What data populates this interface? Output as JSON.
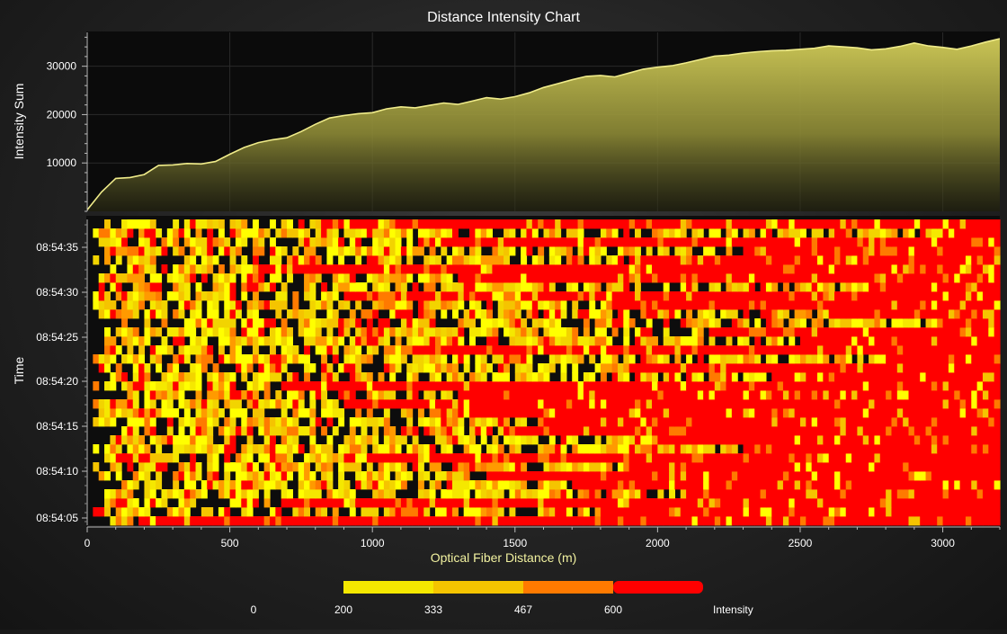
{
  "chart_data": [
    {
      "type": "area",
      "title": "Distance Intensity Chart",
      "xlabel": "Optical Fiber Distance (m)",
      "ylabel": "Intensity Sum",
      "xlim": [
        0,
        3200
      ],
      "ylim": [
        0,
        37000
      ],
      "x_ticks": [
        0,
        500,
        1000,
        1500,
        2000,
        2500,
        3000
      ],
      "y_ticks": [
        10000,
        20000,
        30000
      ],
      "x": [
        0,
        50,
        100,
        150,
        200,
        250,
        300,
        350,
        400,
        450,
        500,
        550,
        600,
        650,
        700,
        750,
        800,
        850,
        900,
        950,
        1000,
        1050,
        1100,
        1150,
        1200,
        1250,
        1300,
        1350,
        1400,
        1450,
        1500,
        1550,
        1600,
        1650,
        1700,
        1750,
        1800,
        1850,
        1900,
        1950,
        2000,
        2050,
        2100,
        2150,
        2200,
        2250,
        2300,
        2350,
        2400,
        2450,
        2500,
        2550,
        2600,
        2650,
        2700,
        2750,
        2800,
        2850,
        2900,
        2950,
        3000,
        3050,
        3100,
        3150,
        3200
      ],
      "values": [
        300,
        4000,
        6800,
        7000,
        7600,
        9500,
        9600,
        9900,
        9800,
        10300,
        11800,
        13200,
        14200,
        14800,
        15200,
        16500,
        18000,
        19300,
        19800,
        20200,
        20400,
        21200,
        21600,
        21400,
        21900,
        22400,
        22100,
        22800,
        23500,
        23200,
        23700,
        24500,
        25600,
        26400,
        27200,
        27900,
        28100,
        27800,
        28600,
        29400,
        29800,
        30100,
        30700,
        31400,
        32100,
        32300,
        32700,
        33000,
        33200,
        33300,
        33500,
        33700,
        34200,
        34000,
        33800,
        33400,
        33600,
        34100,
        34800,
        34200,
        33900,
        33500,
        34200,
        35000,
        35700
      ],
      "grid": true,
      "fill": "gradient-yellow"
    },
    {
      "type": "heatmap",
      "ylabel": "Time",
      "xlabel": "Optical Fiber Distance (m)",
      "xlim": [
        0,
        3200
      ],
      "y_ticks": [
        "08:54:05",
        "08:54:10",
        "08:54:15",
        "08:54:20",
        "08:54:25",
        "08:54:30",
        "08:54:35"
      ],
      "time_range": [
        "08:54:04.6",
        "08:54:38.5"
      ],
      "x_cells": 160,
      "time_rows": 34,
      "row_times": [
        "08:54:05",
        "08:54:06",
        "08:54:07",
        "08:54:08",
        "08:54:09",
        "08:54:10",
        "08:54:11",
        "08:54:12",
        "08:54:13",
        "08:54:14",
        "08:54:15",
        "08:54:16",
        "08:54:17",
        "08:54:18",
        "08:54:19",
        "08:54:20",
        "08:54:21",
        "08:54:22",
        "08:54:23",
        "08:54:24",
        "08:54:25",
        "08:54:26",
        "08:54:27",
        "08:54:28",
        "08:54:29",
        "08:54:30",
        "08:54:31",
        "08:54:32",
        "08:54:33",
        "08:54:34",
        "08:54:35",
        "08:54:36",
        "08:54:37",
        "08:54:38"
      ],
      "row_data_start": [
        80,
        20,
        40,
        60,
        100,
        40,
        20,
        60,
        20,
        40,
        80,
        30,
        40,
        20,
        60,
        20,
        80,
        40,
        30,
        60,
        20,
        60,
        120,
        40,
        30,
        20,
        30,
        40,
        80,
        30,
        60,
        40,
        20,
        60
      ],
      "row_red_from": [
        200,
        1800,
        700,
        2100,
        1700,
        1400,
        1900,
        900,
        2300,
        2000,
        1500,
        1600,
        1200,
        900,
        1300,
        700,
        2400,
        1900,
        2800,
        1100,
        2500,
        2200,
        3000,
        2600,
        1800,
        900,
        2700,
        1300,
        600,
        1900,
        2300,
        1200,
        3000,
        800
      ],
      "legend": {
        "label": "Intensity",
        "ticks": [
          "0",
          "200",
          "333",
          "467",
          "600"
        ],
        "colors": [
          "#ffff00",
          "#f5e800",
          "#f5c400",
          "#ff7a00",
          "#ff0000"
        ]
      }
    }
  ]
}
